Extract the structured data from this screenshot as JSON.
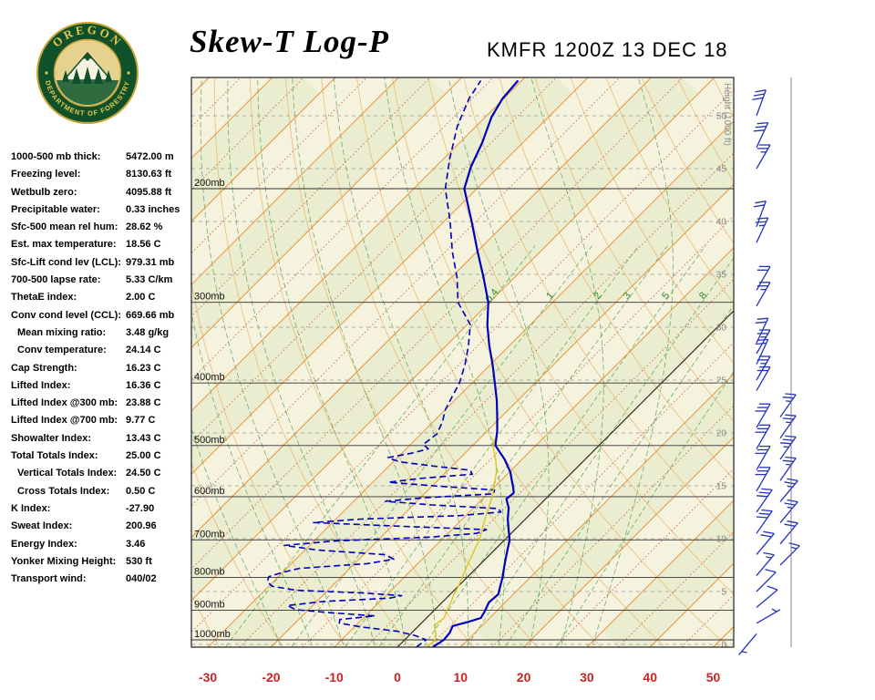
{
  "header": {
    "title": "Skew-T Log-P",
    "station": "KMFR 1200Z 13 DEC 18",
    "logo": {
      "top_text": "OREGON",
      "bottom_text": "DEPARTMENT OF FORESTRY"
    }
  },
  "indices": [
    {
      "label": "1000-500 mb thick:",
      "value": "5472.00 m"
    },
    {
      "label": "Freezing level:",
      "value": "8130.63 ft"
    },
    {
      "label": "Wetbulb zero:",
      "value": "4095.88 ft"
    },
    {
      "label": "Precipitable water:",
      "value": "0.33 inches"
    },
    {
      "label": "Sfc-500 mean rel hum:",
      "value": "28.62 %"
    },
    {
      "label": "Est. max temperature:",
      "value": "18.56 C"
    },
    {
      "label": "Sfc-Lift cond lev (LCL):",
      "value": "979.31 mb"
    },
    {
      "label": "700-500 lapse rate:",
      "value": "5.33 C/km"
    },
    {
      "label": "ThetaE index:",
      "value": "2.00 C"
    },
    {
      "label": "Conv cond level (CCL):",
      "value": "669.66 mb"
    },
    {
      "label": "Mean mixing ratio:",
      "value": "3.48 g/kg",
      "indent": true
    },
    {
      "label": "Conv temperature:",
      "value": "24.14 C",
      "indent": true
    },
    {
      "label": "Cap Strength:",
      "value": "16.23 C"
    },
    {
      "label": "Lifted Index:",
      "value": "16.36 C"
    },
    {
      "label": "Lifted Index @300 mb:",
      "value": "23.88 C"
    },
    {
      "label": "Lifted Index @700 mb:",
      "value": "9.77 C"
    },
    {
      "label": "Showalter Index:",
      "value": "13.43 C"
    },
    {
      "label": "Total Totals Index:",
      "value": "25.00 C"
    },
    {
      "label": "Vertical Totals Index:",
      "value": "24.50 C",
      "indent": true
    },
    {
      "label": "Cross Totals Index:",
      "value": "0.50 C",
      "indent": true
    },
    {
      "label": "K Index:",
      "value": "-27.90"
    },
    {
      "label": "Sweat Index:",
      "value": "200.96"
    },
    {
      "label": "Energy Index:",
      "value": "3.46"
    },
    {
      "label": "Yonker Mixing Height:",
      "value": "530 ft"
    },
    {
      "label": "Transport wind:",
      "value": "040/02"
    }
  ],
  "chart_data": {
    "type": "line",
    "title": "Skew-T Log-P",
    "station": "KMFR 1200Z 13 DEC 18",
    "x_axis": {
      "unit": "C",
      "ticks": [
        -30,
        -20,
        -10,
        0,
        10,
        20,
        30,
        40,
        50
      ]
    },
    "pressure_lines_mb": [
      200,
      300,
      400,
      500,
      600,
      700,
      800,
      900,
      1000
    ],
    "pressure_label_suffix": "mb",
    "height_axis": {
      "label": "Height (1000 ft)",
      "ticks_kft": [
        0,
        5,
        10,
        15,
        20,
        25,
        30,
        35,
        40,
        45,
        50
      ]
    },
    "mixing_ratio_lines_gkg": [
      0.4,
      1,
      2,
      3,
      5,
      8,
      12,
      20
    ],
    "mixing_ratio_labels": [
      0.4,
      1,
      2,
      3,
      5,
      8
    ],
    "isotherms_c": {
      "min": -120,
      "max": 50,
      "step": 10
    },
    "dry_adiabats_c": {
      "min": -30,
      "max": 150,
      "step": 10
    },
    "moist_adiabats_c": {
      "min": -20,
      "max": 30,
      "step": 5
    },
    "series": [
      {
        "name": "temperature",
        "color": "#0000bb",
        "style": "solid",
        "points": [
          [
            1026,
            5.6
          ],
          [
            1000,
            6.2
          ],
          [
            975,
            6.0
          ],
          [
            952,
            5.4
          ],
          [
            938,
            7.2
          ],
          [
            925,
            8.6
          ],
          [
            905,
            8.2
          ],
          [
            875,
            7.4
          ],
          [
            850,
            7.6
          ],
          [
            820,
            6.4
          ],
          [
            800,
            5.6
          ],
          [
            775,
            4.4
          ],
          [
            750,
            3.2
          ],
          [
            725,
            2.0
          ],
          [
            700,
            0.8
          ],
          [
            675,
            -1.0
          ],
          [
            650,
            -2.8
          ],
          [
            625,
            -4.4
          ],
          [
            605,
            -6.2
          ],
          [
            592,
            -6.0
          ],
          [
            580,
            -7.0
          ],
          [
            565,
            -8.4
          ],
          [
            550,
            -9.8
          ],
          [
            525,
            -12.8
          ],
          [
            500,
            -16.4
          ],
          [
            475,
            -18.4
          ],
          [
            450,
            -20.8
          ],
          [
            425,
            -23.4
          ],
          [
            400,
            -26.4
          ],
          [
            375,
            -29.6
          ],
          [
            350,
            -33.2
          ],
          [
            325,
            -36.8
          ],
          [
            300,
            -40.2
          ],
          [
            275,
            -44.8
          ],
          [
            250,
            -50.0
          ],
          [
            225,
            -55.6
          ],
          [
            200,
            -62.0
          ],
          [
            185,
            -64.4
          ],
          [
            170,
            -66.4
          ],
          [
            155,
            -69.0
          ],
          [
            145,
            -70.2
          ],
          [
            136,
            -70.6
          ]
        ]
      },
      {
        "name": "dewpoint",
        "color": "#0000bb",
        "style": "dashed",
        "points": [
          [
            1026,
            3.0
          ],
          [
            1000,
            3.4
          ],
          [
            985,
            1.0
          ],
          [
            970,
            -2.5
          ],
          [
            955,
            -9.0
          ],
          [
            942,
            -13.0
          ],
          [
            930,
            -13.5
          ],
          [
            918,
            -8.5
          ],
          [
            908,
            -16.0
          ],
          [
            898,
            -22.0
          ],
          [
            885,
            -24.0
          ],
          [
            872,
            -19.0
          ],
          [
            862,
            -9.0
          ],
          [
            854,
            -7.5
          ],
          [
            846,
            -14.0
          ],
          [
            838,
            -25.0
          ],
          [
            826,
            -29.5
          ],
          [
            812,
            -31.0
          ],
          [
            798,
            -31.5
          ],
          [
            786,
            -30.0
          ],
          [
            775,
            -28.0
          ],
          [
            762,
            -18.0
          ],
          [
            750,
            -14.5
          ],
          [
            738,
            -16.5
          ],
          [
            726,
            -28.0
          ],
          [
            714,
            -34.0
          ],
          [
            703,
            -27.0
          ],
          [
            693,
            -12.0
          ],
          [
            684,
            -5.5
          ],
          [
            675,
            -4.5
          ],
          [
            666,
            -20.0
          ],
          [
            658,
            -33.0
          ],
          [
            650,
            -26.0
          ],
          [
            642,
            -11.0
          ],
          [
            634,
            -5.0
          ],
          [
            626,
            -6.0
          ],
          [
            618,
            -17.0
          ],
          [
            610,
            -25.0
          ],
          [
            602,
            -19.0
          ],
          [
            594,
            -9.0
          ],
          [
            586,
            -9.5
          ],
          [
            578,
            -19.0
          ],
          [
            570,
            -27.5
          ],
          [
            562,
            -23.0
          ],
          [
            554,
            -15.5
          ],
          [
            546,
            -16.5
          ],
          [
            538,
            -23.0
          ],
          [
            530,
            -29.0
          ],
          [
            522,
            -31.5
          ],
          [
            514,
            -28.5
          ],
          [
            506,
            -26.5
          ],
          [
            498,
            -28.0
          ],
          [
            480,
            -27.5
          ],
          [
            460,
            -28.5
          ],
          [
            440,
            -30.0
          ],
          [
            420,
            -31.0
          ],
          [
            400,
            -32.0
          ],
          [
            375,
            -34.0
          ],
          [
            350,
            -36.5
          ],
          [
            325,
            -39.5
          ],
          [
            300,
            -45.0
          ],
          [
            275,
            -49.0
          ],
          [
            250,
            -54.0
          ],
          [
            225,
            -59.0
          ],
          [
            200,
            -65.0
          ],
          [
            180,
            -69.0
          ],
          [
            160,
            -73.0
          ],
          [
            145,
            -75.5
          ],
          [
            136,
            -76.5
          ]
        ]
      },
      {
        "name": "wetbulb",
        "color": "#ddc61c",
        "style": "solid",
        "points": [
          [
            1026,
            4.6
          ],
          [
            1000,
            4.8
          ],
          [
            975,
            3.8
          ],
          [
            950,
            2.4
          ],
          [
            925,
            2.8
          ],
          [
            900,
            2.0
          ],
          [
            875,
            1.4
          ],
          [
            850,
            0.6
          ],
          [
            825,
            0.0
          ],
          [
            800,
            -0.8
          ],
          [
            775,
            -1.6
          ],
          [
            750,
            -2.4
          ],
          [
            725,
            -3.2
          ],
          [
            700,
            -4.0
          ],
          [
            675,
            -5.2
          ],
          [
            650,
            -6.4
          ],
          [
            625,
            -7.6
          ],
          [
            600,
            -8.8
          ],
          [
            575,
            -10.4
          ],
          [
            550,
            -12.0
          ],
          [
            525,
            -14.2
          ],
          [
            500,
            -16.8
          ],
          [
            488,
            -17.6
          ]
        ]
      }
    ],
    "wind_barbs_kt": [
      {
        "kft": 50,
        "dir": 20,
        "spd": 30
      },
      {
        "kft": 47,
        "dir": 25,
        "spd": 30
      },
      {
        "kft": 45,
        "dir": 30,
        "spd": 25
      },
      {
        "kft": 39.5,
        "dir": 20,
        "spd": 20
      },
      {
        "kft": 38,
        "dir": 25,
        "spd": 25
      },
      {
        "kft": 33.5,
        "dir": 30,
        "spd": 20
      },
      {
        "kft": 32,
        "dir": 30,
        "spd": 25
      },
      {
        "kft": 28.5,
        "dir": 25,
        "spd": 20
      },
      {
        "kft": 27.5,
        "dir": 30,
        "spd": 25
      },
      {
        "kft": 26.5,
        "dir": 25,
        "spd": 20
      },
      {
        "kft": 25,
        "dir": 30,
        "spd": 25
      },
      {
        "kft": 24,
        "dir": 30,
        "spd": 20
      },
      {
        "kft": 21.5,
        "dir": 35,
        "spd": 25,
        "col": 1
      },
      {
        "kft": 20.5,
        "dir": 30,
        "spd": 30
      },
      {
        "kft": 19.5,
        "dir": 35,
        "spd": 25,
        "col": 1
      },
      {
        "kft": 18.5,
        "dir": 30,
        "spd": 30
      },
      {
        "kft": 17.5,
        "dir": 35,
        "spd": 35,
        "col": 1
      },
      {
        "kft": 16.5,
        "dir": 30,
        "spd": 30
      },
      {
        "kft": 15.5,
        "dir": 35,
        "spd": 25,
        "col": 1
      },
      {
        "kft": 14.5,
        "dir": 30,
        "spd": 30
      },
      {
        "kft": 13.5,
        "dir": 40,
        "spd": 25,
        "col": 1
      },
      {
        "kft": 12.5,
        "dir": 35,
        "spd": 30
      },
      {
        "kft": 11.5,
        "dir": 40,
        "spd": 25,
        "col": 1
      },
      {
        "kft": 10.5,
        "dir": 35,
        "spd": 30
      },
      {
        "kft": 9.5,
        "dir": 40,
        "spd": 20,
        "col": 1
      },
      {
        "kft": 8.5,
        "dir": 40,
        "spd": 20
      },
      {
        "kft": 7.5,
        "dir": 45,
        "spd": 15,
        "col": 1
      },
      {
        "kft": 6.5,
        "dir": 40,
        "spd": 15
      },
      {
        "kft": 5,
        "dir": 45,
        "spd": 10
      },
      {
        "kft": 3.5,
        "dir": 50,
        "spd": 10
      },
      {
        "kft": 2,
        "dir": 60,
        "spd": 5
      },
      {
        "kft": 1,
        "dir": 220,
        "spd": 3
      }
    ],
    "colors": {
      "plot_bg": "#f5f2dd",
      "band": "rgba(203,222,168,0.25)",
      "isotherm": "#e3953f",
      "minor_iso": "#cc5a4a",
      "dry": "#e9b36a",
      "moist": "#4a9a4a",
      "mixing": "#57a857",
      "mixing_label": "#2f8f2f",
      "barb": "#2233bb",
      "axis_label": "#cc2222"
    }
  }
}
